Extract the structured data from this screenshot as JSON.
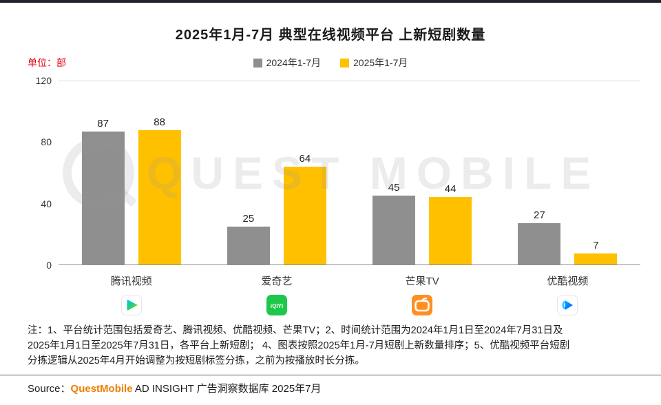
{
  "header": {
    "title": "2025年1月-7月 典型在线视频平台 上新短剧数量",
    "unit_label": "单位：部"
  },
  "legend": [
    {
      "label": "2024年1-7月",
      "color": "#8f8f8f"
    },
    {
      "label": "2025年1-7月",
      "color": "#ffc000"
    }
  ],
  "chart_data": {
    "type": "bar",
    "title": "2025年1月-7月 典型在线视频平台 上新短剧数量",
    "unit": "部",
    "categories": [
      "腾讯视频",
      "爱奇艺",
      "芒果TV",
      "优酷视频"
    ],
    "series": [
      {
        "name": "2024年1-7月",
        "color": "#8f8f8f",
        "values": [
          87,
          25,
          45,
          27
        ]
      },
      {
        "name": "2025年1-7月",
        "color": "#ffc000",
        "values": [
          88,
          64,
          44,
          7
        ]
      }
    ],
    "ylim": [
      0,
      120
    ],
    "yticks": [
      0,
      40,
      80,
      120
    ],
    "grid": false,
    "legend_position": "top",
    "value_labels": true
  },
  "platforms": [
    {
      "name": "腾讯视频",
      "icon": "tencent-video-icon"
    },
    {
      "name": "爱奇艺",
      "icon": "iqiyi-icon",
      "icon_text": "iQIYI"
    },
    {
      "name": "芒果TV",
      "icon": "mango-tv-icon"
    },
    {
      "name": "优酷视频",
      "icon": "youku-icon"
    }
  ],
  "watermark": "QUEST MOBILE",
  "footnote": {
    "lines": [
      "注：1、平台统计范围包括爱奇艺、腾讯视频、优酷视频、芒果TV；2、时间统计范围为2024年1月1日至2024年7月31日及",
      "2025年1月1日至2025年7月31日，各平台上新短剧；  4、图表按照2025年1月-7月短剧上新数量排序；5、优酷视频平台短剧",
      "分拣逻辑从2025年4月开始调整为按短剧标签分拣，之前为按播放时长分拣。"
    ]
  },
  "source": {
    "prefix": "Source：",
    "brand": "QuestMobile",
    "suffix": " AD INSIGHT 广告洞察数据库 2025年7月"
  }
}
